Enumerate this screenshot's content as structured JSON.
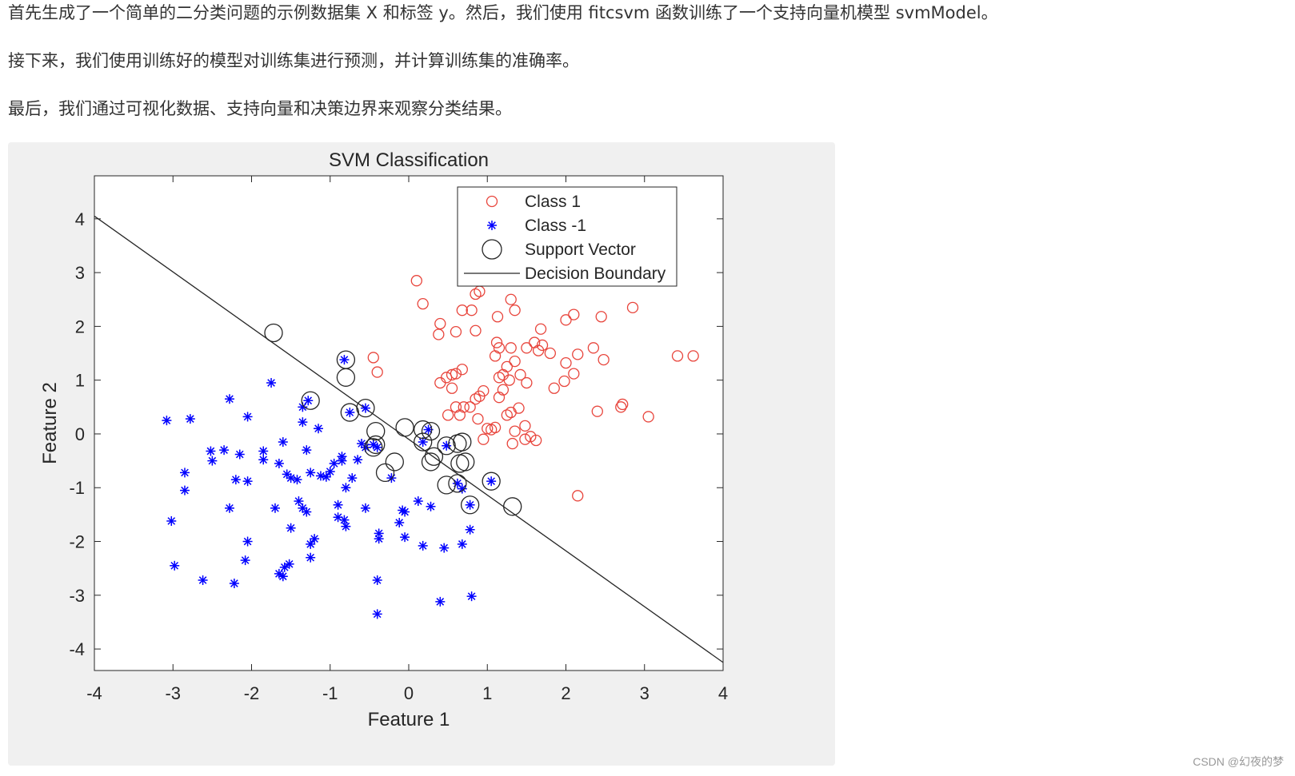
{
  "article": {
    "paragraphs": [
      "首先生成了一个简单的二分类问题的示例数据集 X 和标签 y。然后，我们使用 fitcsvm 函数训练了一个支持向量机模型 svmModel。",
      "接下来，我们使用训练好的模型对训练集进行预测，并计算训练集的准确率。",
      "最后，我们通过可视化数据、支持向量和决策边界来观察分类结果。"
    ],
    "watermark": "CSDN @幻夜的梦"
  },
  "colors": {
    "class1": "#e8453c",
    "class_neg1": "#0000ff",
    "support": "#262626",
    "boundary": "#262626",
    "figure_bg": "#f0f0f0",
    "axes_bg": "#ffffff"
  },
  "chart_data": {
    "type": "scatter",
    "title": "SVM Classification",
    "xlabel": "Feature 1",
    "ylabel": "Feature 2",
    "xlim": [
      -4,
      4
    ],
    "ylim": [
      -4.4,
      4.8
    ],
    "xticks": [
      -4,
      -3,
      -2,
      -1,
      0,
      1,
      2,
      3,
      4
    ],
    "yticks": [
      -4,
      -3,
      -2,
      -1,
      0,
      1,
      2,
      3,
      4
    ],
    "grid": false,
    "legend": {
      "location": "top-right",
      "entries": [
        "Class 1",
        "Class -1",
        "Support Vector",
        "Decision Boundary"
      ]
    },
    "series": [
      {
        "name": "Class 1",
        "marker": "circle",
        "points": [
          [
            0.1,
            2.85
          ],
          [
            0.18,
            2.42
          ],
          [
            0.4,
            2.05
          ],
          [
            0.38,
            1.85
          ],
          [
            0.6,
            1.9
          ],
          [
            0.68,
            2.3
          ],
          [
            0.8,
            2.3
          ],
          [
            0.85,
            2.6
          ],
          [
            0.9,
            2.65
          ],
          [
            0.85,
            1.92
          ],
          [
            1.13,
            2.18
          ],
          [
            1.3,
            2.5
          ],
          [
            1.35,
            2.3
          ],
          [
            1.68,
            1.95
          ],
          [
            2.0,
            2.12
          ],
          [
            2.1,
            2.22
          ],
          [
            2.45,
            2.18
          ],
          [
            2.85,
            2.35
          ],
          [
            0.4,
            0.95
          ],
          [
            0.48,
            1.05
          ],
          [
            0.55,
            1.1
          ],
          [
            0.6,
            1.12
          ],
          [
            0.68,
            1.2
          ],
          [
            0.55,
            0.85
          ],
          [
            0.7,
            0.5
          ],
          [
            0.85,
            0.65
          ],
          [
            0.9,
            0.7
          ],
          [
            0.95,
            0.8
          ],
          [
            0.6,
            0.5
          ],
          [
            0.65,
            0.35
          ],
          [
            0.5,
            0.35
          ],
          [
            0.78,
            0.5
          ],
          [
            0.88,
            0.28
          ],
          [
            1.0,
            0.1
          ],
          [
            1.05,
            0.08
          ],
          [
            0.95,
            -0.1
          ],
          [
            1.1,
            1.45
          ],
          [
            1.12,
            1.7
          ],
          [
            1.15,
            1.6
          ],
          [
            1.2,
            1.1
          ],
          [
            1.15,
            1.05
          ],
          [
            1.25,
            1.25
          ],
          [
            1.3,
            1.6
          ],
          [
            1.28,
            1.0
          ],
          [
            1.35,
            1.35
          ],
          [
            1.42,
            1.1
          ],
          [
            1.5,
            0.95
          ],
          [
            1.5,
            1.6
          ],
          [
            1.6,
            1.7
          ],
          [
            1.7,
            1.65
          ],
          [
            1.65,
            1.55
          ],
          [
            1.8,
            1.5
          ],
          [
            1.85,
            0.85
          ],
          [
            1.98,
            0.98
          ],
          [
            2.0,
            1.32
          ],
          [
            2.1,
            1.12
          ],
          [
            2.15,
            1.48
          ],
          [
            2.35,
            1.6
          ],
          [
            2.48,
            1.38
          ],
          [
            2.4,
            0.42
          ],
          [
            2.7,
            0.5
          ],
          [
            2.72,
            0.55
          ],
          [
            3.05,
            0.32
          ],
          [
            3.42,
            1.45
          ],
          [
            3.62,
            1.45
          ],
          [
            1.15,
            0.68
          ],
          [
            1.2,
            0.82
          ],
          [
            1.25,
            0.35
          ],
          [
            1.3,
            0.4
          ],
          [
            1.4,
            0.48
          ],
          [
            1.35,
            0.05
          ],
          [
            1.48,
            0.15
          ],
          [
            1.48,
            -0.1
          ],
          [
            1.55,
            -0.05
          ],
          [
            1.62,
            -0.12
          ],
          [
            1.32,
            -0.18
          ],
          [
            1.1,
            0.12
          ],
          [
            2.15,
            -1.15
          ],
          [
            -0.45,
            1.42
          ],
          [
            -0.4,
            1.15
          ]
        ]
      },
      {
        "name": "Class -1",
        "marker": "star",
        "points": [
          [
            -3.08,
            0.25
          ],
          [
            -2.78,
            0.28
          ],
          [
            -2.28,
            0.65
          ],
          [
            -2.05,
            0.32
          ],
          [
            -1.75,
            0.95
          ],
          [
            -2.52,
            -0.32
          ],
          [
            -2.5,
            -0.5
          ],
          [
            -2.35,
            -0.3
          ],
          [
            -2.2,
            -0.85
          ],
          [
            -2.15,
            -0.38
          ],
          [
            -2.05,
            -0.88
          ],
          [
            -1.85,
            -0.32
          ],
          [
            -1.85,
            -0.48
          ],
          [
            -1.65,
            -0.55
          ],
          [
            -1.6,
            -0.15
          ],
          [
            -1.55,
            -0.75
          ],
          [
            -1.5,
            -0.82
          ],
          [
            -1.42,
            -0.85
          ],
          [
            -1.35,
            0.22
          ],
          [
            -1.35,
            0.5
          ],
          [
            -1.3,
            -0.3
          ],
          [
            -1.25,
            -0.72
          ],
          [
            -1.15,
            0.1
          ],
          [
            -1.12,
            -0.78
          ],
          [
            -1.05,
            -0.8
          ],
          [
            -1.0,
            -0.7
          ],
          [
            -0.95,
            -0.55
          ],
          [
            -0.85,
            -0.42
          ],
          [
            -0.85,
            -0.5
          ],
          [
            -0.8,
            -1.0
          ],
          [
            -0.72,
            -0.82
          ],
          [
            -0.65,
            -0.48
          ],
          [
            -0.6,
            -0.18
          ],
          [
            -0.55,
            -0.25
          ],
          [
            -0.9,
            -1.32
          ],
          [
            -0.9,
            -1.55
          ],
          [
            -0.82,
            -1.6
          ],
          [
            -0.8,
            -1.72
          ],
          [
            -0.55,
            -1.38
          ],
          [
            -0.38,
            -1.85
          ],
          [
            -0.38,
            -1.95
          ],
          [
            -0.12,
            -1.65
          ],
          [
            -0.08,
            -1.42
          ],
          [
            -0.05,
            -1.45
          ],
          [
            -0.05,
            -1.92
          ],
          [
            0.12,
            -1.25
          ],
          [
            0.18,
            -2.08
          ],
          [
            0.28,
            -1.35
          ],
          [
            0.45,
            -2.12
          ],
          [
            0.68,
            -2.05
          ],
          [
            0.78,
            -1.78
          ],
          [
            0.4,
            -3.12
          ],
          [
            0.8,
            -3.02
          ],
          [
            -0.4,
            -2.72
          ],
          [
            -0.4,
            -3.35
          ],
          [
            -2.85,
            -0.72
          ],
          [
            -2.85,
            -1.05
          ],
          [
            -2.28,
            -1.38
          ],
          [
            -2.05,
            -2.0
          ],
          [
            -2.08,
            -2.35
          ],
          [
            -1.7,
            -1.38
          ],
          [
            -1.5,
            -1.75
          ],
          [
            -1.4,
            -1.25
          ],
          [
            -1.35,
            -1.38
          ],
          [
            -1.3,
            -1.45
          ],
          [
            -1.25,
            -2.05
          ],
          [
            -1.2,
            -1.95
          ],
          [
            -1.25,
            -2.3
          ],
          [
            -3.02,
            -1.62
          ],
          [
            -2.98,
            -2.45
          ],
          [
            -2.62,
            -2.72
          ],
          [
            -2.22,
            -2.78
          ],
          [
            -1.65,
            -2.6
          ],
          [
            -1.6,
            -2.65
          ],
          [
            -1.58,
            -2.48
          ],
          [
            -1.52,
            -2.42
          ],
          [
            -0.45,
            -0.2
          ],
          [
            -0.4,
            -0.25
          ],
          [
            -0.22,
            -0.82
          ],
          [
            0.25,
            0.08
          ],
          [
            -1.28,
            0.62
          ],
          [
            -0.82,
            1.38
          ],
          [
            -0.75,
            0.4
          ],
          [
            -0.55,
            0.48
          ],
          [
            0.48,
            -0.22
          ],
          [
            0.62,
            -0.92
          ],
          [
            0.68,
            -1.02
          ],
          [
            0.78,
            -1.32
          ],
          [
            1.05,
            -0.88
          ],
          [
            0.18,
            -0.15
          ]
        ]
      },
      {
        "name": "Support Vector",
        "marker": "large-circle",
        "points": [
          [
            -1.72,
            1.88
          ],
          [
            -1.25,
            0.62
          ],
          [
            -0.8,
            1.38
          ],
          [
            -0.8,
            1.05
          ],
          [
            -0.75,
            0.4
          ],
          [
            -0.55,
            0.48
          ],
          [
            -0.42,
            0.05
          ],
          [
            -0.42,
            -0.2
          ],
          [
            -0.45,
            -0.25
          ],
          [
            -0.3,
            -0.72
          ],
          [
            -0.18,
            -0.52
          ],
          [
            -0.05,
            0.12
          ],
          [
            0.18,
            0.08
          ],
          [
            0.28,
            0.05
          ],
          [
            0.18,
            -0.15
          ],
          [
            0.32,
            -0.42
          ],
          [
            0.28,
            -0.52
          ],
          [
            0.48,
            -0.22
          ],
          [
            0.62,
            -0.18
          ],
          [
            0.68,
            -0.15
          ],
          [
            0.72,
            -0.52
          ],
          [
            0.65,
            -0.55
          ],
          [
            0.48,
            -0.95
          ],
          [
            0.62,
            -0.92
          ],
          [
            0.78,
            -1.32
          ],
          [
            1.05,
            -0.88
          ],
          [
            1.32,
            -1.35
          ]
        ]
      }
    ],
    "decision_boundary": {
      "from": [
        -4,
        4.05
      ],
      "to": [
        4,
        -4.25
      ]
    }
  }
}
